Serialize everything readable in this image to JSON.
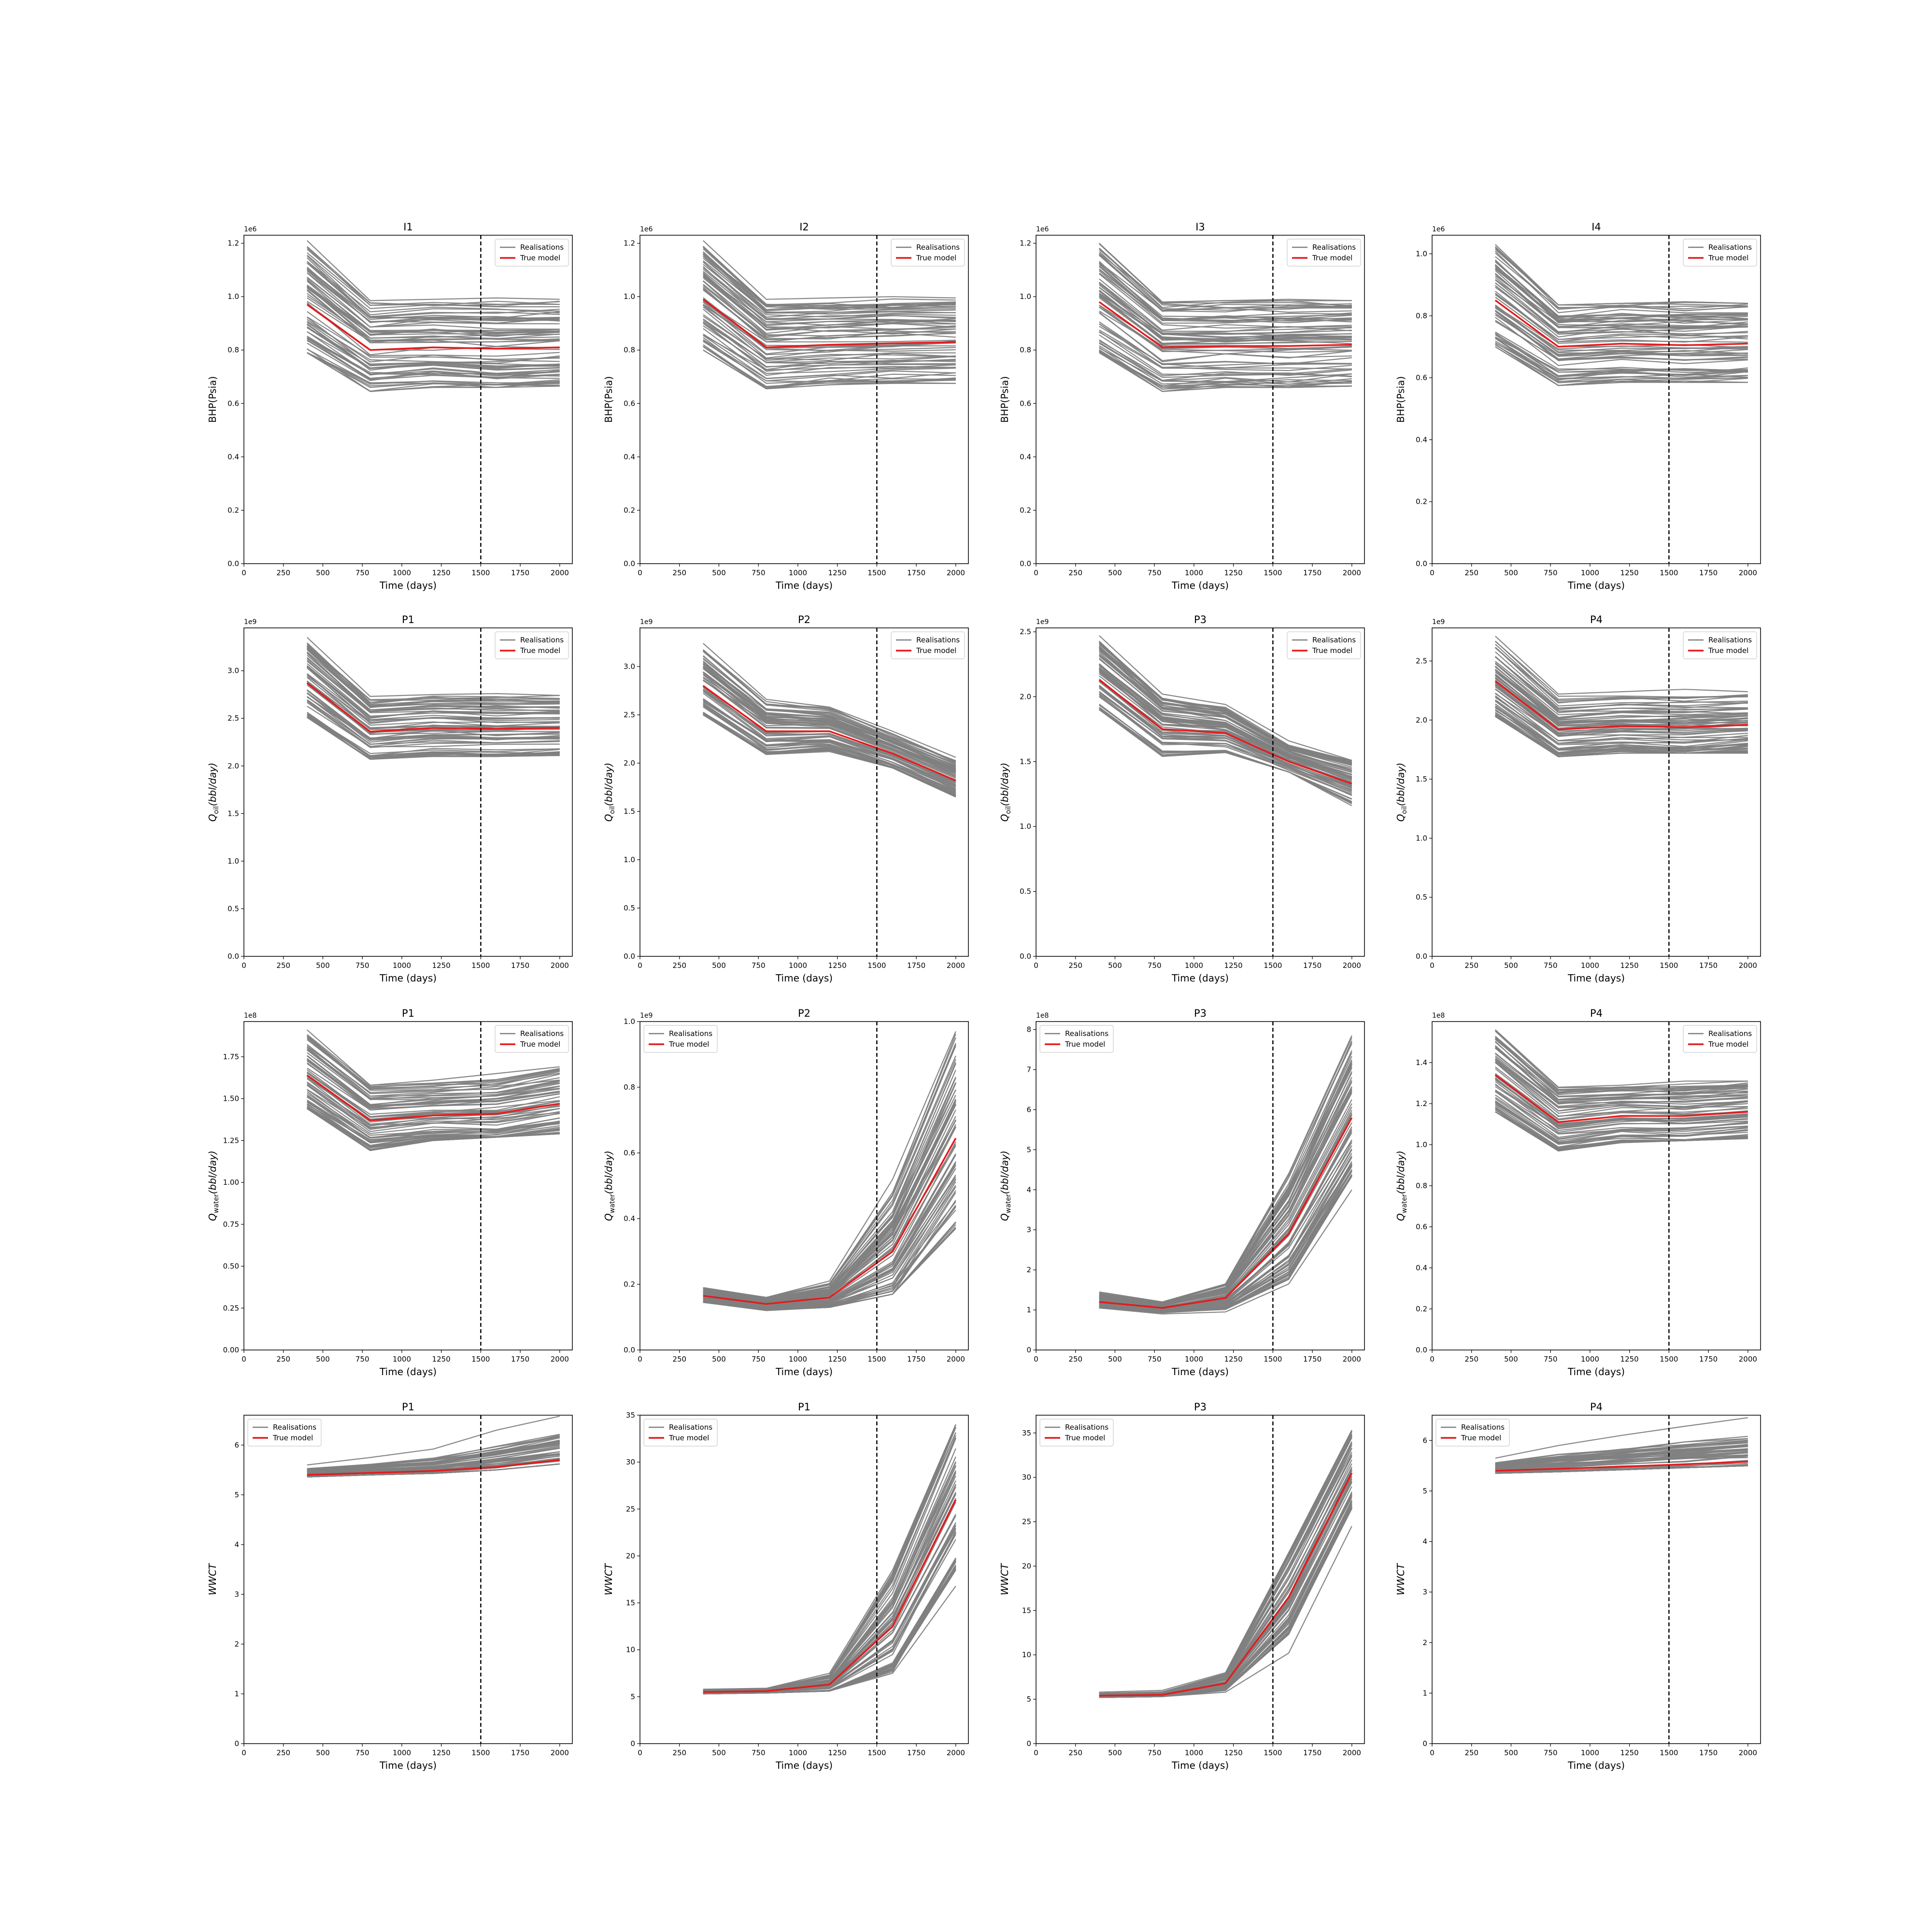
{
  "xlabel": "Time (days)",
  "legend_labels": {
    "realisations": "Realisations",
    "true_model": "True model"
  },
  "colors": {
    "realisations": "#7f7f7f",
    "true_model": "#e41a1c",
    "cutoff": "#000000",
    "frame": "#000000"
  },
  "chart_data": [
    {
      "type": "line",
      "title": "I1",
      "ylabel": "BHP(Psia)",
      "offset": "1e6",
      "xlim": [
        0,
        2080
      ],
      "ylim": [
        0,
        1.23
      ],
      "yticks": [
        0.0,
        0.2,
        0.4,
        0.6,
        0.8,
        1.0,
        1.2
      ],
      "legend": "top-right",
      "cutoff_x": 1500,
      "x": [
        400,
        800,
        1200,
        1600,
        2000
      ],
      "true_model": [
        0.97,
        0.8,
        0.81,
        0.805,
        0.81
      ],
      "realisations_band": {
        "low": [
          0.79,
          0.645,
          0.66,
          0.66,
          0.665
        ],
        "high": [
          1.21,
          0.985,
          0.99,
          0.995,
          0.99
        ]
      }
    },
    {
      "type": "line",
      "title": "I2",
      "ylabel": "BHP(Psia)",
      "offset": "1e6",
      "xlim": [
        0,
        2080
      ],
      "ylim": [
        0,
        1.23
      ],
      "yticks": [
        0.0,
        0.2,
        0.4,
        0.6,
        0.8,
        1.0,
        1.2
      ],
      "legend": "top-right",
      "cutoff_x": 1500,
      "x": [
        400,
        800,
        1200,
        1600,
        2000
      ],
      "true_model": [
        0.99,
        0.81,
        0.82,
        0.825,
        0.83
      ],
      "realisations_band": {
        "low": [
          0.8,
          0.655,
          0.67,
          0.675,
          0.675
        ],
        "high": [
          1.21,
          0.99,
          0.995,
          1.0,
          0.995
        ]
      }
    },
    {
      "type": "line",
      "title": "I3",
      "ylabel": "BHP(Psia)",
      "offset": "1e6",
      "xlim": [
        0,
        2080
      ],
      "ylim": [
        0,
        1.23
      ],
      "yticks": [
        0.0,
        0.2,
        0.4,
        0.6,
        0.8,
        1.0,
        1.2
      ],
      "legend": "top-right",
      "cutoff_x": 1500,
      "x": [
        400,
        800,
        1200,
        1600,
        2000
      ],
      "true_model": [
        0.98,
        0.81,
        0.815,
        0.815,
        0.82
      ],
      "realisations_band": {
        "low": [
          0.79,
          0.645,
          0.66,
          0.66,
          0.665
        ],
        "high": [
          1.2,
          0.98,
          0.985,
          0.99,
          0.985
        ]
      }
    },
    {
      "type": "line",
      "title": "I4",
      "ylabel": "BHP(Psia)",
      "offset": "1e6",
      "xlim": [
        0,
        2080
      ],
      "ylim": [
        0,
        1.06
      ],
      "yticks": [
        0.0,
        0.2,
        0.4,
        0.6,
        0.8,
        1.0
      ],
      "legend": "top-right",
      "cutoff_x": 1500,
      "x": [
        400,
        800,
        1200,
        1600,
        2000
      ],
      "true_model": [
        0.85,
        0.7,
        0.71,
        0.705,
        0.71
      ],
      "realisations_band": {
        "low": [
          0.7,
          0.575,
          0.585,
          0.585,
          0.585
        ],
        "high": [
          1.03,
          0.835,
          0.84,
          0.845,
          0.84
        ]
      }
    },
    {
      "type": "line",
      "title": "P1",
      "ylabel": "Q_oil(bbl/day)",
      "ylabel_base": "Q",
      "ylabel_sub": "oil",
      "ylabel_tail": "(bbl/day)",
      "offset": "1e9",
      "xlim": [
        0,
        2080
      ],
      "ylim": [
        0,
        3.45
      ],
      "yticks": [
        0.0,
        0.5,
        1.0,
        1.5,
        2.0,
        2.5,
        3.0
      ],
      "legend": "top-right",
      "cutoff_x": 1500,
      "x": [
        400,
        800,
        1200,
        1600,
        2000
      ],
      "true_model": [
        2.87,
        2.36,
        2.4,
        2.39,
        2.4
      ],
      "realisations_band": {
        "low": [
          2.51,
          2.07,
          2.1,
          2.1,
          2.11
        ],
        "high": [
          3.35,
          2.73,
          2.75,
          2.76,
          2.74
        ]
      }
    },
    {
      "type": "line",
      "title": "P2",
      "ylabel": "Q_oil(bbl/day)",
      "ylabel_base": "Q",
      "ylabel_sub": "oil",
      "ylabel_tail": "(bbl/day)",
      "offset": "1e9",
      "xlim": [
        0,
        2080
      ],
      "ylim": [
        0,
        3.4
      ],
      "yticks": [
        0.0,
        0.5,
        1.0,
        1.5,
        2.0,
        2.5,
        3.0
      ],
      "legend": "top-right",
      "cutoff_x": 1500,
      "x": [
        400,
        800,
        1200,
        1600,
        2000
      ],
      "true_model": [
        2.8,
        2.33,
        2.33,
        2.1,
        1.82
      ],
      "realisations_band": {
        "low": [
          2.5,
          2.09,
          2.12,
          1.95,
          1.65
        ],
        "high": [
          3.24,
          2.66,
          2.58,
          2.33,
          2.06
        ]
      }
    },
    {
      "type": "line",
      "title": "P3",
      "ylabel": "Q_oil(bbl/day)",
      "ylabel_base": "Q",
      "ylabel_sub": "oil",
      "ylabel_tail": "(bbl/day)",
      "offset": "1e9",
      "xlim": [
        0,
        2080
      ],
      "ylim": [
        0,
        2.53
      ],
      "yticks": [
        0.0,
        0.5,
        1.0,
        1.5,
        2.0,
        2.5
      ],
      "legend": "top-right",
      "cutoff_x": 1500,
      "x": [
        400,
        800,
        1200,
        1600,
        2000
      ],
      "true_model": [
        2.13,
        1.75,
        1.72,
        1.5,
        1.33
      ],
      "realisations_band": {
        "low": [
          1.9,
          1.54,
          1.57,
          1.42,
          1.16
        ],
        "high": [
          2.47,
          2.02,
          1.94,
          1.66,
          1.51
        ]
      }
    },
    {
      "type": "line",
      "title": "P4",
      "ylabel": "Q_oil(bbl/day)",
      "ylabel_base": "Q",
      "ylabel_sub": "oil",
      "ylabel_tail": "(bbl/day)",
      "offset": "1e9",
      "xlim": [
        0,
        2080
      ],
      "ylim": [
        0,
        2.78
      ],
      "yticks": [
        0.0,
        0.5,
        1.0,
        1.5,
        2.0,
        2.5
      ],
      "legend": "top-right",
      "cutoff_x": 1500,
      "x": [
        400,
        800,
        1200,
        1600,
        2000
      ],
      "true_model": [
        2.33,
        1.92,
        1.95,
        1.94,
        1.96
      ],
      "realisations_band": {
        "low": [
          2.03,
          1.69,
          1.72,
          1.72,
          1.72
        ],
        "high": [
          2.71,
          2.22,
          2.24,
          2.26,
          2.24
        ]
      }
    },
    {
      "type": "line",
      "title": "P1",
      "ylabel": "Q_water(bbl/day)",
      "ylabel_base": "Q",
      "ylabel_sub": "water",
      "ylabel_tail": "(bbl/day)",
      "offset": "1e8",
      "xlim": [
        0,
        2080
      ],
      "ylim": [
        0,
        1.96
      ],
      "yticks": [
        0.0,
        0.25,
        0.5,
        0.75,
        1.0,
        1.25,
        1.5,
        1.75
      ],
      "legend": "top-right",
      "cutoff_x": 1500,
      "x": [
        400,
        800,
        1200,
        1600,
        2000
      ],
      "true_model": [
        1.64,
        1.37,
        1.4,
        1.41,
        1.47
      ],
      "realisations_band": {
        "low": [
          1.44,
          1.19,
          1.25,
          1.27,
          1.29
        ],
        "high": [
          1.91,
          1.58,
          1.61,
          1.65,
          1.69
        ]
      }
    },
    {
      "type": "line",
      "title": "P2",
      "ylabel": "Q_water(bbl/day)",
      "ylabel_base": "Q",
      "ylabel_sub": "water",
      "ylabel_tail": "(bbl/day)",
      "offset": "1e9",
      "xlim": [
        0,
        2080
      ],
      "ylim": [
        0,
        1.0
      ],
      "yticks": [
        0.0,
        0.2,
        0.4,
        0.6,
        0.8,
        1.0
      ],
      "legend": "top-left",
      "cutoff_x": 1500,
      "x": [
        400,
        800,
        1200,
        1600,
        2000
      ],
      "true_model": [
        0.165,
        0.14,
        0.16,
        0.3,
        0.645
      ],
      "realisations_band": {
        "low": [
          0.145,
          0.12,
          0.13,
          0.17,
          0.37
        ],
        "high": [
          0.19,
          0.16,
          0.21,
          0.52,
          0.97
        ]
      }
    },
    {
      "type": "line",
      "title": "P3",
      "ylabel": "Q_water(bbl/day)",
      "ylabel_base": "Q",
      "ylabel_sub": "water",
      "ylabel_tail": "(bbl/day)",
      "offset": "1e8",
      "xlim": [
        0,
        2080
      ],
      "ylim": [
        0,
        8.2
      ],
      "yticks": [
        0,
        1,
        2,
        3,
        4,
        5,
        6,
        7,
        8
      ],
      "legend": "top-left",
      "cutoff_x": 1500,
      "x": [
        400,
        800,
        1200,
        1600,
        2000
      ],
      "true_model": [
        1.2,
        1.05,
        1.3,
        2.9,
        5.8
      ],
      "realisations_band": {
        "low": [
          1.05,
          0.9,
          0.95,
          1.65,
          4.0
        ],
        "high": [
          1.45,
          1.2,
          1.65,
          4.4,
          7.85
        ]
      }
    },
    {
      "type": "line",
      "title": "P4",
      "ylabel": "Q_water(bbl/day)",
      "ylabel_base": "Q",
      "ylabel_sub": "water",
      "ylabel_tail": "(bbl/day)",
      "offset": "1e8",
      "xlim": [
        0,
        2080
      ],
      "ylim": [
        0,
        1.6
      ],
      "yticks": [
        0.0,
        0.2,
        0.4,
        0.6,
        0.8,
        1.0,
        1.2,
        1.4
      ],
      "legend": "top-right",
      "cutoff_x": 1500,
      "x": [
        400,
        800,
        1200,
        1600,
        2000
      ],
      "true_model": [
        1.34,
        1.11,
        1.14,
        1.14,
        1.16
      ],
      "realisations_band": {
        "low": [
          1.16,
          0.97,
          1.01,
          1.02,
          1.03
        ],
        "high": [
          1.56,
          1.28,
          1.29,
          1.31,
          1.31
        ]
      }
    },
    {
      "type": "line",
      "title": "P1",
      "ylabel": "WWCT",
      "offset": "",
      "xlim": [
        0,
        2080
      ],
      "ylim": [
        0,
        6.6
      ],
      "yticks": [
        0,
        1,
        2,
        3,
        4,
        5,
        6
      ],
      "legend": "top-left",
      "cutoff_x": 1500,
      "x": [
        400,
        800,
        1200,
        1600,
        2000
      ],
      "true_model": [
        5.4,
        5.44,
        5.48,
        5.56,
        5.7
      ],
      "realisations_band": {
        "low": [
          5.36,
          5.4,
          5.43,
          5.5,
          5.62
        ],
        "high": [
          5.6,
          5.75,
          5.92,
          6.3,
          6.58
        ]
      }
    },
    {
      "type": "line",
      "title": "P1",
      "ylabel": "WWCT",
      "offset": "",
      "xlim": [
        0,
        2080
      ],
      "ylim": [
        0,
        35
      ],
      "yticks": [
        0,
        5,
        10,
        15,
        20,
        25,
        30,
        35
      ],
      "legend": "top-left",
      "cutoff_x": 1500,
      "x": [
        400,
        800,
        1200,
        1600,
        2000
      ],
      "true_model": [
        5.5,
        5.6,
        6.3,
        12.5,
        26.0
      ],
      "realisations_band": {
        "low": [
          5.3,
          5.4,
          5.6,
          7.5,
          16.8
        ],
        "high": [
          5.8,
          5.9,
          7.5,
          18.5,
          34.0
        ]
      }
    },
    {
      "type": "line",
      "title": "P3",
      "ylabel": "WWCT",
      "offset": "",
      "xlim": [
        0,
        2080
      ],
      "ylim": [
        0,
        37
      ],
      "yticks": [
        0,
        5,
        10,
        15,
        20,
        25,
        30,
        35
      ],
      "legend": "top-left",
      "cutoff_x": 1500,
      "x": [
        400,
        800,
        1200,
        1600,
        2000
      ],
      "true_model": [
        5.4,
        5.5,
        6.8,
        16.5,
        30.5
      ],
      "realisations_band": {
        "low": [
          5.2,
          5.3,
          5.8,
          10.2,
          24.5
        ],
        "high": [
          5.8,
          6.0,
          8.0,
          21.5,
          35.3
        ]
      }
    },
    {
      "type": "line",
      "title": "P4",
      "ylabel": "WWCT",
      "offset": "",
      "xlim": [
        0,
        2080
      ],
      "ylim": [
        0,
        6.5
      ],
      "yticks": [
        0,
        1,
        2,
        3,
        4,
        5,
        6
      ],
      "legend": "top-left",
      "cutoff_x": 1500,
      "x": [
        400,
        800,
        1200,
        1600,
        2000
      ],
      "true_model": [
        5.4,
        5.44,
        5.48,
        5.53,
        5.58
      ],
      "realisations_band": {
        "low": [
          5.35,
          5.38,
          5.42,
          5.46,
          5.5
        ],
        "high": [
          5.65,
          5.9,
          6.1,
          6.28,
          6.45
        ]
      }
    }
  ]
}
